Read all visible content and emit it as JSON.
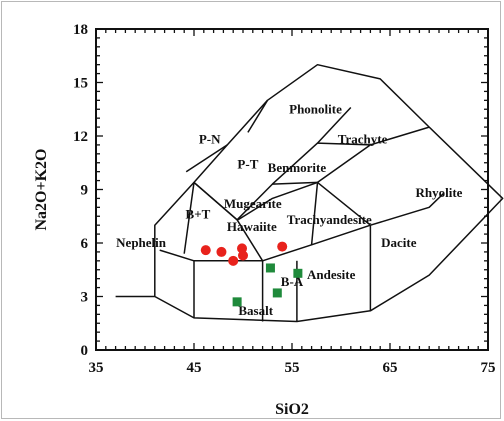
{
  "chart_data": {
    "type": "scatter",
    "title": "",
    "xlabel": "SiO2",
    "ylabel": "Na2O+K2O",
    "xlim": [
      35,
      75
    ],
    "ylim": [
      0,
      18
    ],
    "x_ticks": [
      35,
      45,
      55,
      65,
      75
    ],
    "x_tick_labels": [
      "35",
      "45",
      "55",
      "65",
      "75"
    ],
    "y_ticks": [
      0,
      3,
      6,
      9,
      12,
      15,
      18
    ],
    "y_tick_labels": [
      "0",
      "3",
      "6",
      "9",
      "12",
      "15",
      "18"
    ],
    "grid": false,
    "field_labels": [
      {
        "text": "Nephelin",
        "x": 39.6,
        "y": 6.0
      },
      {
        "text": "B+T",
        "x": 45.4,
        "y": 7.6
      },
      {
        "text": "P-N",
        "x": 46.6,
        "y": 11.8
      },
      {
        "text": "P-T",
        "x": 50.5,
        "y": 10.4
      },
      {
        "text": "Phonolite",
        "x": 57.4,
        "y": 13.5
      },
      {
        "text": "Trachyte",
        "x": 62.2,
        "y": 11.8
      },
      {
        "text": "Benmorite",
        "x": 55.5,
        "y": 10.2
      },
      {
        "text": "Rhyolite",
        "x": 70.0,
        "y": 8.8
      },
      {
        "text": "Mugearite",
        "x": 51.0,
        "y": 8.2
      },
      {
        "text": "Hawaiite",
        "x": 50.9,
        "y": 6.9
      },
      {
        "text": "Trachyandesite",
        "x": 58.8,
        "y": 7.3
      },
      {
        "text": "Dacite",
        "x": 65.9,
        "y": 6.0
      },
      {
        "text": "B-A",
        "x": 55.0,
        "y": 3.8
      },
      {
        "text": "Andesite",
        "x": 59.0,
        "y": 4.2
      },
      {
        "text": "Basalt",
        "x": 51.3,
        "y": 2.2
      }
    ],
    "field_boundaries": [
      [
        [
          37.0,
          3.0
        ],
        [
          41.0,
          3.0
        ],
        [
          41.0,
          7.0
        ],
        [
          45.0,
          9.4
        ],
        [
          48.4,
          11.5
        ],
        [
          52.5,
          14.0
        ],
        [
          57.6,
          16.0
        ],
        [
          64.0,
          15.2
        ],
        [
          69.0,
          12.5
        ],
        [
          76.5,
          8.5
        ],
        [
          69.0,
          4.2
        ],
        [
          63.0,
          2.2
        ],
        [
          55.5,
          1.6
        ],
        [
          45.0,
          1.8
        ],
        [
          41.0,
          3.0
        ]
      ],
      [
        [
          45.0,
          1.8
        ],
        [
          45.0,
          5.0
        ]
      ],
      [
        [
          45.0,
          5.0
        ],
        [
          52.0,
          5.0
        ],
        [
          57.0,
          5.9
        ],
        [
          63.0,
          7.0
        ]
      ],
      [
        [
          63.0,
          7.0
        ],
        [
          63.0,
          2.2
        ]
      ],
      [
        [
          52.0,
          1.6
        ],
        [
          52.0,
          5.0
        ]
      ],
      [
        [
          55.5,
          1.6
        ],
        [
          55.5,
          5.0
        ]
      ],
      [
        [
          41.5,
          5.6
        ],
        [
          45.0,
          5.0
        ]
      ],
      [
        [
          49.5,
          7.3
        ],
        [
          53.0,
          8.5
        ],
        [
          57.6,
          9.4
        ],
        [
          63.0,
          11.5
        ],
        [
          69.0,
          12.5
        ]
      ],
      [
        [
          57.6,
          9.4
        ],
        [
          63.0,
          7.0
        ],
        [
          69.0,
          8.0
        ],
        [
          70.5,
          8.8
        ]
      ],
      [
        [
          45.0,
          9.4
        ],
        [
          49.4,
          7.3
        ],
        [
          53.0,
          9.3
        ],
        [
          57.6,
          11.6
        ],
        [
          61.0,
          13.6
        ]
      ],
      [
        [
          53.0,
          9.3
        ],
        [
          57.6,
          9.4
        ]
      ],
      [
        [
          57.6,
          11.6
        ],
        [
          63.0,
          11.5
        ]
      ],
      [
        [
          50.5,
          12.2
        ],
        [
          52.5,
          14.0
        ]
      ],
      [
        [
          44.2,
          10.0
        ],
        [
          48.4,
          11.5
        ]
      ],
      [
        [
          52.0,
          5.0
        ],
        [
          49.4,
          7.3
        ],
        [
          45.0,
          9.4
        ]
      ],
      [
        [
          44.0,
          5.4
        ],
        [
          45.0,
          9.4
        ]
      ],
      [
        [
          57.0,
          5.9
        ],
        [
          57.6,
          9.4
        ]
      ]
    ],
    "series": [
      {
        "color": "#e8221c",
        "marker": "circle",
        "points": [
          [
            46.2,
            5.6
          ],
          [
            47.8,
            5.5
          ],
          [
            49.0,
            5.0
          ],
          [
            50.0,
            5.3
          ],
          [
            49.9,
            5.7
          ],
          [
            54.0,
            5.8
          ]
        ]
      },
      {
        "color": "#1f8a3b",
        "marker": "square",
        "points": [
          [
            49.4,
            2.7
          ],
          [
            52.8,
            4.6
          ],
          [
            53.5,
            3.2
          ],
          [
            55.6,
            4.3
          ]
        ]
      }
    ]
  }
}
